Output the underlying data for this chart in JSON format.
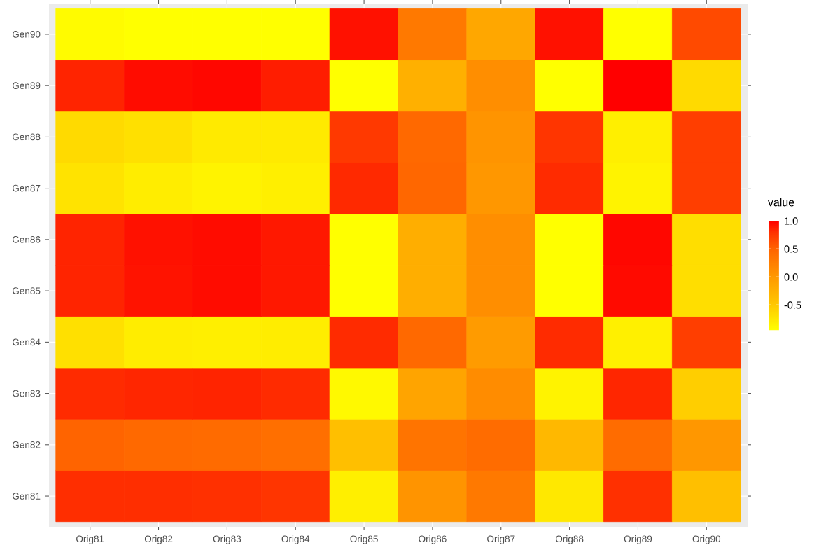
{
  "chart_data": {
    "type": "heatmap",
    "clabel": "value",
    "categories": [
      "Orig81",
      "Orig82",
      "Orig83",
      "Orig84",
      "Orig85",
      "Orig86",
      "Orig87",
      "Orig88",
      "Orig89",
      "Orig90"
    ],
    "y_categories": [
      "Gen90",
      "Gen89",
      "Gen88",
      "Gen87",
      "Gen86",
      "Gen85",
      "Gen84",
      "Gen83",
      "Gen82",
      "Gen81"
    ],
    "cells": [
      [
        -0.92,
        -0.95,
        -0.95,
        -0.95,
        0.93,
        0.3,
        -0.15,
        0.93,
        -0.95,
        0.65
      ],
      [
        0.85,
        0.95,
        0.97,
        0.88,
        -0.95,
        -0.25,
        0.1,
        -0.95,
        1.0,
        -0.65
      ],
      [
        -0.65,
        -0.7,
        -0.78,
        -0.78,
        0.75,
        0.45,
        0.05,
        0.77,
        -0.82,
        0.72
      ],
      [
        -0.72,
        -0.8,
        -0.85,
        -0.82,
        0.83,
        0.47,
        0.02,
        0.82,
        -0.85,
        0.72
      ],
      [
        0.85,
        0.93,
        0.95,
        0.9,
        -0.95,
        -0.22,
        0.1,
        -0.95,
        0.97,
        -0.68
      ],
      [
        0.85,
        0.92,
        0.95,
        0.9,
        -0.95,
        -0.22,
        0.1,
        -0.95,
        0.96,
        -0.68
      ],
      [
        -0.7,
        -0.8,
        -0.82,
        -0.8,
        0.82,
        0.45,
        -0.02,
        0.82,
        -0.83,
        0.72
      ],
      [
        0.82,
        0.84,
        0.85,
        0.82,
        -0.9,
        -0.12,
        0.12,
        -0.85,
        0.84,
        -0.55
      ],
      [
        0.5,
        0.45,
        0.43,
        0.4,
        -0.4,
        0.35,
        0.42,
        -0.33,
        0.42,
        0.02
      ],
      [
        0.81,
        0.81,
        0.8,
        0.77,
        -0.82,
        0.05,
        0.3,
        -0.76,
        0.8,
        -0.4
      ]
    ],
    "clim": [
      -0.95,
      1.0
    ],
    "cticks": [
      {
        "value": -0.5,
        "label": "-0.5"
      },
      {
        "value": 0,
        "label": "0.0"
      },
      {
        "value": 0.5,
        "label": "0.5"
      },
      {
        "value": 1,
        "label": "1.0"
      }
    ],
    "grid": true
  }
}
